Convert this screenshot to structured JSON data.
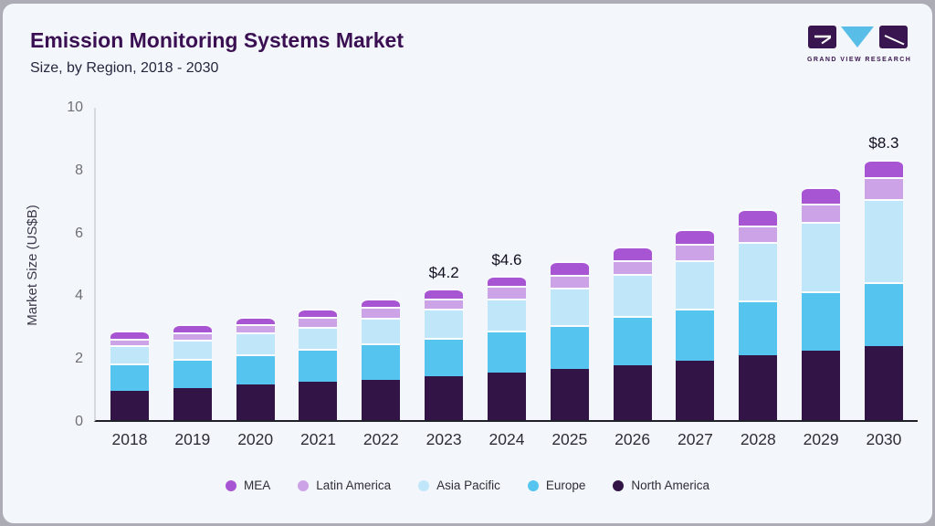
{
  "header": {
    "title": "Emission Monitoring Systems Market",
    "subtitle": "Size, by Region, 2018 - 2030"
  },
  "logo": {
    "text": "GRAND VIEW RESEARCH",
    "block_color": "#3A1650",
    "triangle_color": "#58BEE8"
  },
  "chart_data": {
    "type": "bar",
    "stacked": true,
    "title": "Emission Monitoring Systems Market",
    "subtitle": "Size, by Region, 2018 - 2030",
    "xlabel": "",
    "ylabel": "Market Size (US$B)",
    "ylim": [
      0,
      10
    ],
    "yticks": [
      0,
      2,
      4,
      6,
      8,
      10
    ],
    "grid": false,
    "legend_position": "bottom",
    "categories": [
      "2018",
      "2019",
      "2020",
      "2021",
      "2022",
      "2023",
      "2024",
      "2025",
      "2026",
      "2027",
      "2028",
      "2029",
      "2030"
    ],
    "series": [
      {
        "name": "North America",
        "color": "#321447",
        "values": [
          0.93,
          1.01,
          1.12,
          1.21,
          1.29,
          1.4,
          1.52,
          1.63,
          1.75,
          1.9,
          2.07,
          2.21,
          2.35
        ]
      },
      {
        "name": "Europe",
        "color": "#55C5F0",
        "values": [
          0.87,
          0.94,
          0.98,
          1.05,
          1.14,
          1.22,
          1.33,
          1.39,
          1.57,
          1.66,
          1.75,
          1.9,
          2.05
        ]
      },
      {
        "name": "Asia Pacific",
        "color": "#BFE7F9",
        "values": [
          0.58,
          0.61,
          0.68,
          0.72,
          0.84,
          0.92,
          1.02,
          1.21,
          1.34,
          1.52,
          1.84,
          2.19,
          2.65
        ]
      },
      {
        "name": "Latin America",
        "color": "#CDA3E8",
        "values": [
          0.22,
          0.22,
          0.26,
          0.3,
          0.33,
          0.34,
          0.39,
          0.4,
          0.43,
          0.54,
          0.54,
          0.6,
          0.67
        ]
      },
      {
        "name": "MEA",
        "color": "#A855D4",
        "values": [
          0.24,
          0.28,
          0.26,
          0.28,
          0.28,
          0.32,
          0.34,
          0.42,
          0.43,
          0.45,
          0.53,
          0.51,
          0.58
        ]
      }
    ],
    "totals": [
      2.84,
      3.06,
      3.3,
      3.56,
      3.88,
      4.2,
      4.6,
      5.05,
      5.52,
      6.07,
      6.73,
      7.41,
      8.3
    ],
    "annotations": [
      {
        "category": "2023",
        "label": "$4.2"
      },
      {
        "category": "2024",
        "label": "$4.6"
      },
      {
        "category": "2030",
        "label": "$8.3"
      }
    ],
    "legend": [
      "MEA",
      "Latin America",
      "Asia Pacific",
      "Europe",
      "North America"
    ]
  }
}
